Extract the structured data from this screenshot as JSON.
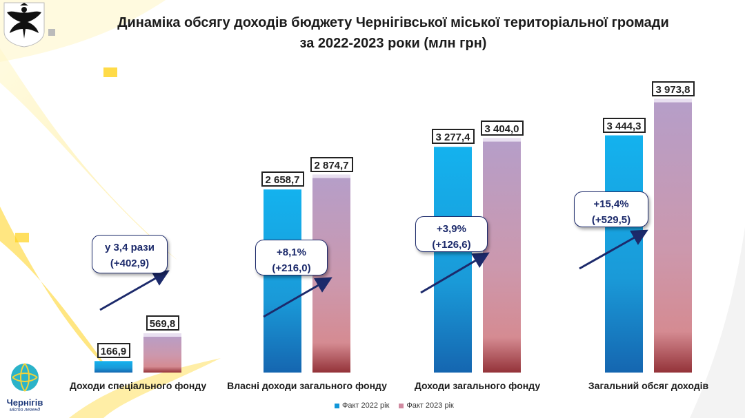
{
  "title_line1": "Динаміка обсягу доходів  бюджету Чернігівської міської територіальної громади",
  "title_line2": "за 2022-2023 роки (млн грн)",
  "logo": {
    "city_name": "Чернігів",
    "tagline": "місто легенд",
    "coat_of_arms": "chernihiv-eagle-emblem"
  },
  "colors": {
    "series2022": "#1aa7e6",
    "series2023": "#c39ab8",
    "arrow": "#1c2a6b"
  },
  "legend": [
    {
      "label": "Факт 2022 рік",
      "color": "#1196d8"
    },
    {
      "label": "Факт 2023 рік",
      "color": "#d08aa0"
    }
  ],
  "chart_data": {
    "type": "bar",
    "title": "Динаміка обсягу доходів бюджету Чернігівської міської територіальної громади за 2022-2023 роки (млн грн)",
    "categories": [
      "Доходи спеціального фонду",
      "Власні доходи загального фонду",
      "Доходи загального фонду",
      "Загальний обсяг доходів"
    ],
    "series": [
      {
        "name": "Факт 2022 рік",
        "values": [
          166.9,
          2658.7,
          3277.4,
          3444.3
        ],
        "labels": [
          "166,9",
          "2 658,7",
          "3 277,4",
          "3 444,3"
        ]
      },
      {
        "name": "Факт 2023 рік",
        "values": [
          569.8,
          2874.7,
          3404.0,
          3973.8
        ],
        "labels": [
          "569,8",
          "2 874,7",
          "3 404,0",
          "3 973,8"
        ]
      }
    ],
    "annotations": [
      {
        "line1": "у 3,4 рази",
        "line2": "(+402,9)"
      },
      {
        "line1": "+8,1%",
        "line2": "(+216,0)"
      },
      {
        "line1": "+3,9%",
        "line2": "(+126,6)"
      },
      {
        "line1": "+15,4%",
        "line2": "(+529,5)"
      }
    ],
    "ylim": [
      0,
      4500
    ],
    "xlabel": "",
    "ylabel": "",
    "grid": false,
    "legend_position": "bottom-center"
  }
}
